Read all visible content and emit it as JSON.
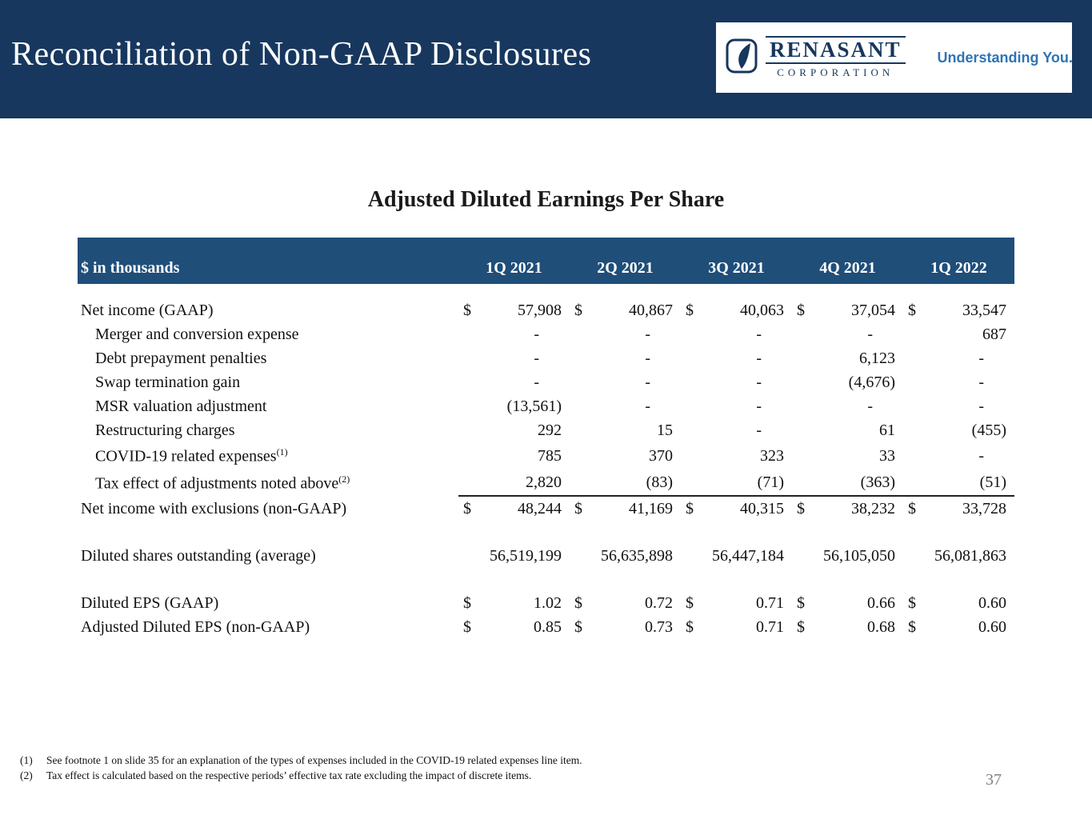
{
  "colors": {
    "banner": "#17375E",
    "table_header": "#1F4E79",
    "tagline": "#2E74B5",
    "page_number": "#7F7F7F"
  },
  "header": {
    "title": "Reconciliation of Non-GAAP Disclosures"
  },
  "logo": {
    "name": "RENASANT",
    "subtitle": "CORPORATION",
    "tagline": "Understanding You."
  },
  "table": {
    "title": "Adjusted Diluted Earnings Per Share",
    "unit_label": "$ in thousands",
    "columns": [
      "1Q 2021",
      "2Q 2021",
      "3Q 2021",
      "4Q 2021",
      "1Q 2022"
    ],
    "rows": [
      {
        "label": "Net income (GAAP)",
        "indent": 0,
        "dollar": true,
        "values": [
          "57,908",
          "40,867",
          "40,063",
          "37,054",
          "33,547"
        ]
      },
      {
        "label": "Merger and conversion expense",
        "indent": 1,
        "dollar": false,
        "values": [
          "-",
          "-",
          "-",
          "-",
          "687"
        ]
      },
      {
        "label": "Debt prepayment penalties",
        "indent": 1,
        "dollar": false,
        "values": [
          "-",
          "-",
          "-",
          "6,123",
          "-"
        ]
      },
      {
        "label": "Swap termination gain",
        "indent": 1,
        "dollar": false,
        "values": [
          "-",
          "-",
          "-",
          "(4,676)",
          "-"
        ]
      },
      {
        "label": "MSR valuation adjustment",
        "indent": 1,
        "dollar": false,
        "values": [
          "(13,561)",
          "-",
          "-",
          "-",
          "-"
        ]
      },
      {
        "label": "Restructuring charges",
        "indent": 1,
        "dollar": false,
        "values": [
          "292",
          "15",
          "-",
          "61",
          "(455)"
        ]
      },
      {
        "label": "COVID-19 related expenses",
        "sup": "(1)",
        "tall": true,
        "indent": 1,
        "dollar": false,
        "values": [
          "785",
          "370",
          "323",
          "33",
          "-"
        ]
      },
      {
        "label": "Tax effect of adjustments noted above",
        "sup": "(2)",
        "tall": true,
        "rule_below": true,
        "indent": 1,
        "dollar": false,
        "values": [
          "2,820",
          "(83)",
          "(71)",
          "(363)",
          "(51)"
        ]
      },
      {
        "label": "Net income with exclusions (non-GAAP)",
        "indent": 0,
        "dollar": true,
        "values": [
          "48,244",
          "41,169",
          "40,315",
          "38,232",
          "33,728"
        ]
      },
      {
        "spacer": true
      },
      {
        "label": "Diluted shares outstanding (average)",
        "indent": 0,
        "dollar": false,
        "values": [
          "56,519,199",
          "56,635,898",
          "56,447,184",
          "56,105,050",
          "56,081,863"
        ]
      },
      {
        "spacer": true
      },
      {
        "label": "Diluted EPS (GAAP)",
        "indent": 0,
        "dollar": true,
        "values": [
          "1.02",
          "0.72",
          "0.71",
          "0.66",
          "0.60"
        ]
      },
      {
        "label": "Adjusted Diluted EPS (non-GAAP)",
        "indent": 0,
        "dollar": true,
        "values": [
          "0.85",
          "0.73",
          "0.71",
          "0.68",
          "0.60"
        ]
      }
    ]
  },
  "footnotes": [
    {
      "num": "(1)",
      "text": "See footnote 1 on slide 35 for an explanation of the types of expenses included in the COVID-19 related expenses line item."
    },
    {
      "num": "(2)",
      "text": "Tax effect is calculated based on the respective periods’ effective tax rate excluding the impact of discrete items."
    }
  ],
  "page_number": "37"
}
